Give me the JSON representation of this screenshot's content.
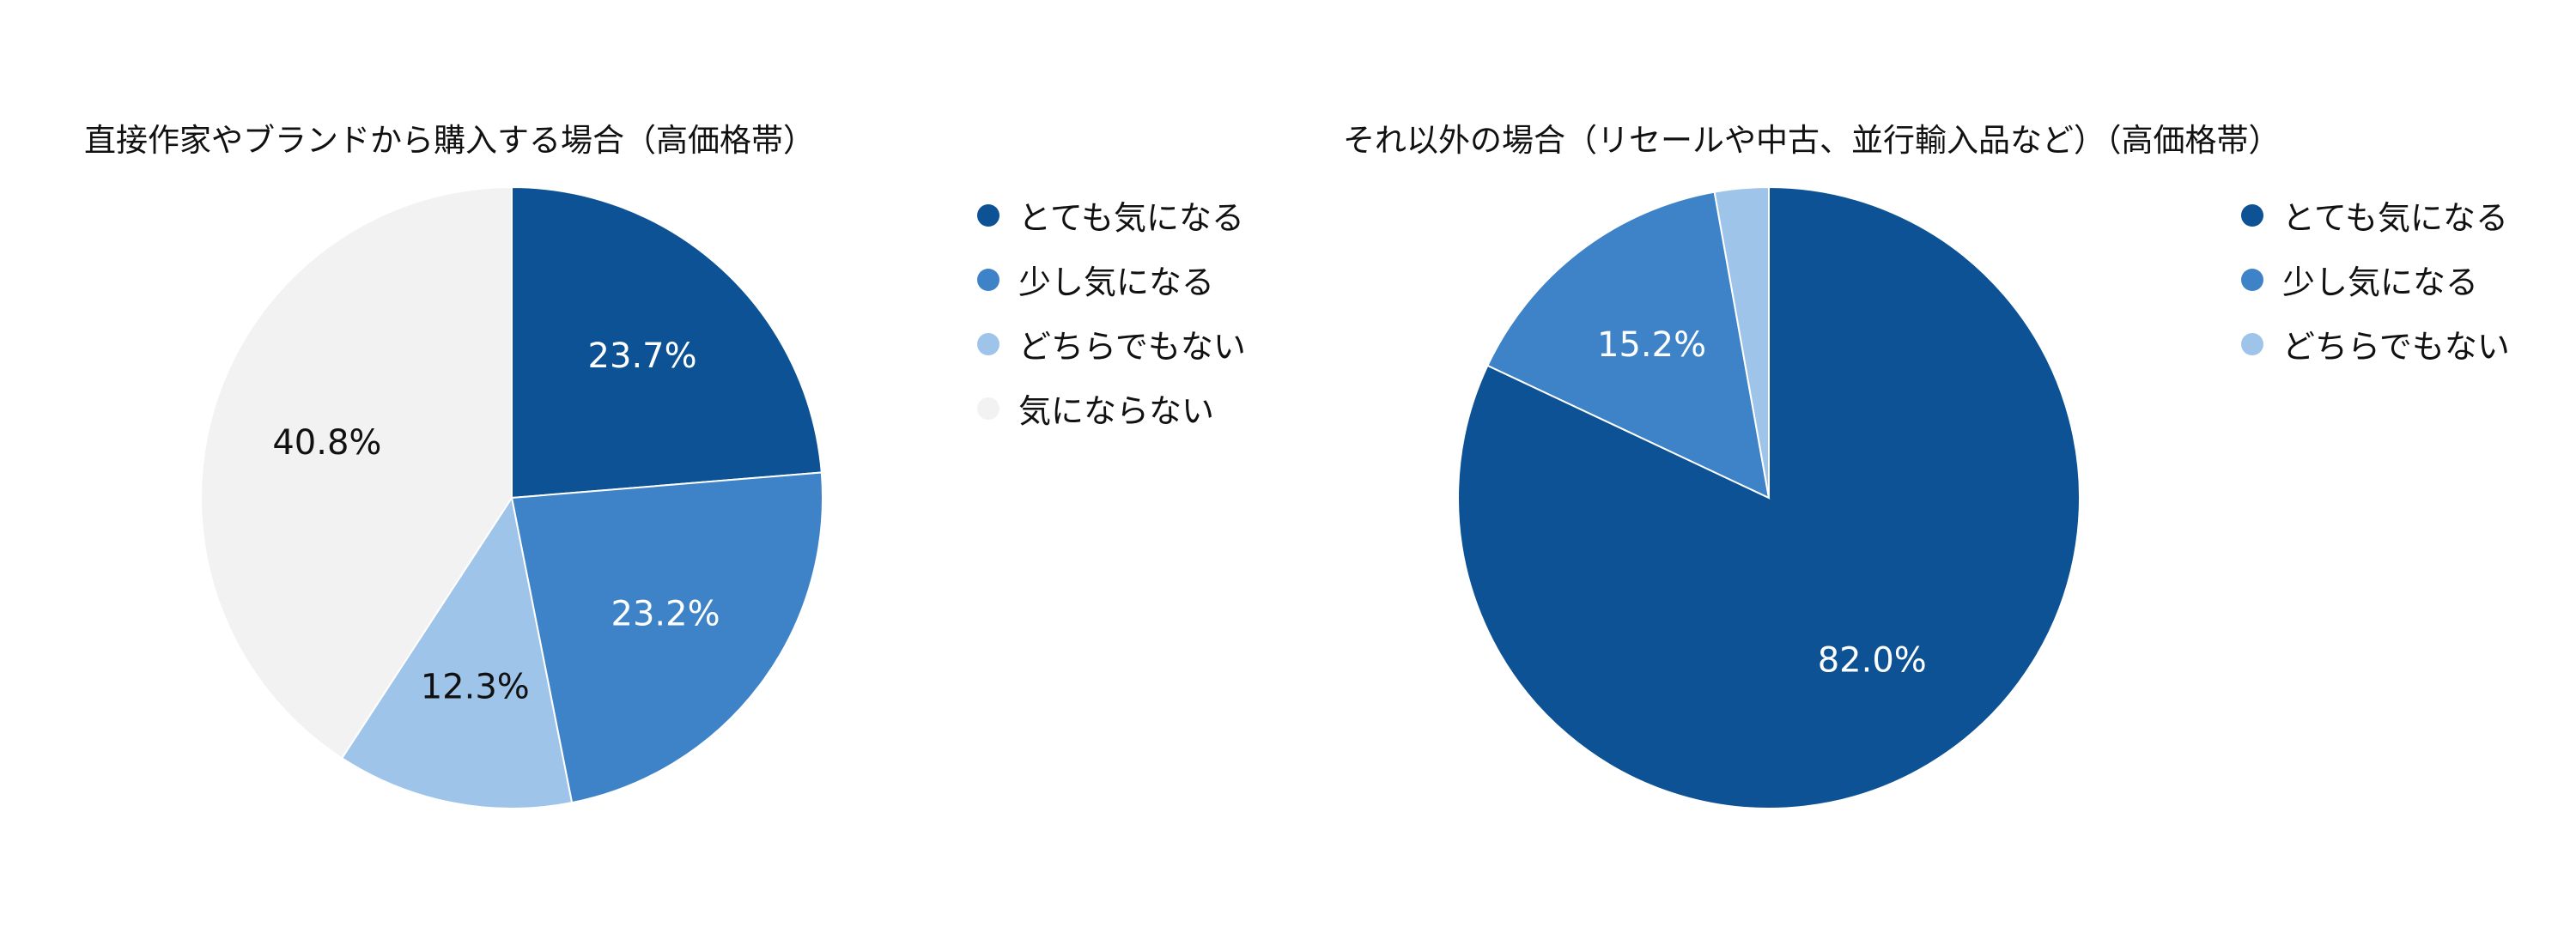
{
  "chart_data": [
    {
      "type": "pie",
      "title": "直接作家やブランドから購入する場合（高価格帯）",
      "categories": [
        "とても気になる",
        "少し気になる",
        "どちらでもない",
        "気にならない"
      ],
      "values": [
        23.7,
        23.2,
        12.3,
        40.8
      ],
      "labels": [
        "23.7%",
        "23.2%",
        "12.3%",
        "40.8%"
      ],
      "unit": "%",
      "colors": [
        "#0d5294",
        "#3e83c7",
        "#9fc4e9",
        "#f2f2f2"
      ],
      "label_colors": [
        "#ffffff",
        "#ffffff",
        "#111111",
        "#111111"
      ],
      "start_angle": 0,
      "direction": "clockwise",
      "legend_position": "right"
    },
    {
      "type": "pie",
      "title": "それ以外の場合（リセールや中古、並行輸入品など）（高価格帯）",
      "categories": [
        "とても気になる",
        "少し気になる",
        "どちらでもない"
      ],
      "values": [
        82.0,
        15.2,
        2.8
      ],
      "labels": [
        "82.0%",
        "15.2%",
        ""
      ],
      "unit": "%",
      "colors": [
        "#0d5294",
        "#3e83c7",
        "#9fc4e9"
      ],
      "label_colors": [
        "#ffffff",
        "#ffffff",
        "#111111"
      ],
      "start_angle": 0,
      "direction": "clockwise",
      "legend_position": "right"
    }
  ]
}
